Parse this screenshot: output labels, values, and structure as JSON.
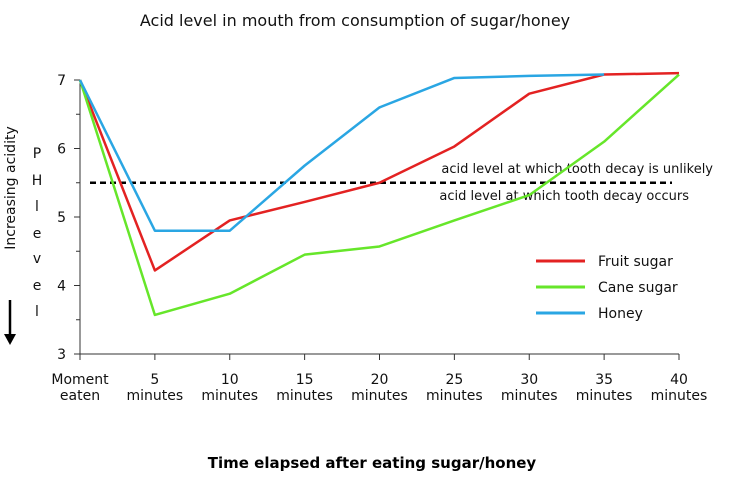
{
  "chart_data": {
    "type": "line",
    "title": "Acid level in mouth from consumption of sugar/honey",
    "xlabel": "Time elapsed after eating sugar/honey",
    "ylabel_primary": "P H   l e v e l",
    "ylabel_secondary": "Increasing acidity",
    "categories": [
      [
        "Moment",
        "eaten"
      ],
      [
        "5",
        "minutes"
      ],
      [
        "10",
        "minutes"
      ],
      [
        "15",
        "minutes"
      ],
      [
        "20",
        "minutes"
      ],
      [
        "25",
        "minutes"
      ],
      [
        "30",
        "minutes"
      ],
      [
        "35",
        "minutes"
      ],
      [
        "40",
        "minutes"
      ]
    ],
    "x": [
      0,
      5,
      10,
      15,
      20,
      25,
      30,
      35,
      40
    ],
    "ylim": [
      3,
      7
    ],
    "yticks": [
      3,
      4,
      5,
      6,
      7
    ],
    "grid": false,
    "legend_position": "right",
    "series": [
      {
        "name": "Fruit sugar",
        "color": "#e32222",
        "values": [
          7.0,
          4.22,
          4.95,
          5.22,
          5.5,
          6.03,
          6.8,
          7.08,
          7.1
        ]
      },
      {
        "name": "Cane sugar",
        "color": "#66e62a",
        "values": [
          7.0,
          3.57,
          3.88,
          4.45,
          4.57,
          4.95,
          5.32,
          6.1,
          7.08
        ]
      },
      {
        "name": "Honey",
        "color": "#2aa6e3",
        "values": [
          7.0,
          4.8,
          4.8,
          5.75,
          6.6,
          7.03,
          7.06,
          7.08,
          null
        ]
      }
    ],
    "threshold": {
      "value": 5.5,
      "label_above": "acid level at which tooth decay is unlikely",
      "label_below": "acid level at which tooth decay occurs"
    }
  }
}
